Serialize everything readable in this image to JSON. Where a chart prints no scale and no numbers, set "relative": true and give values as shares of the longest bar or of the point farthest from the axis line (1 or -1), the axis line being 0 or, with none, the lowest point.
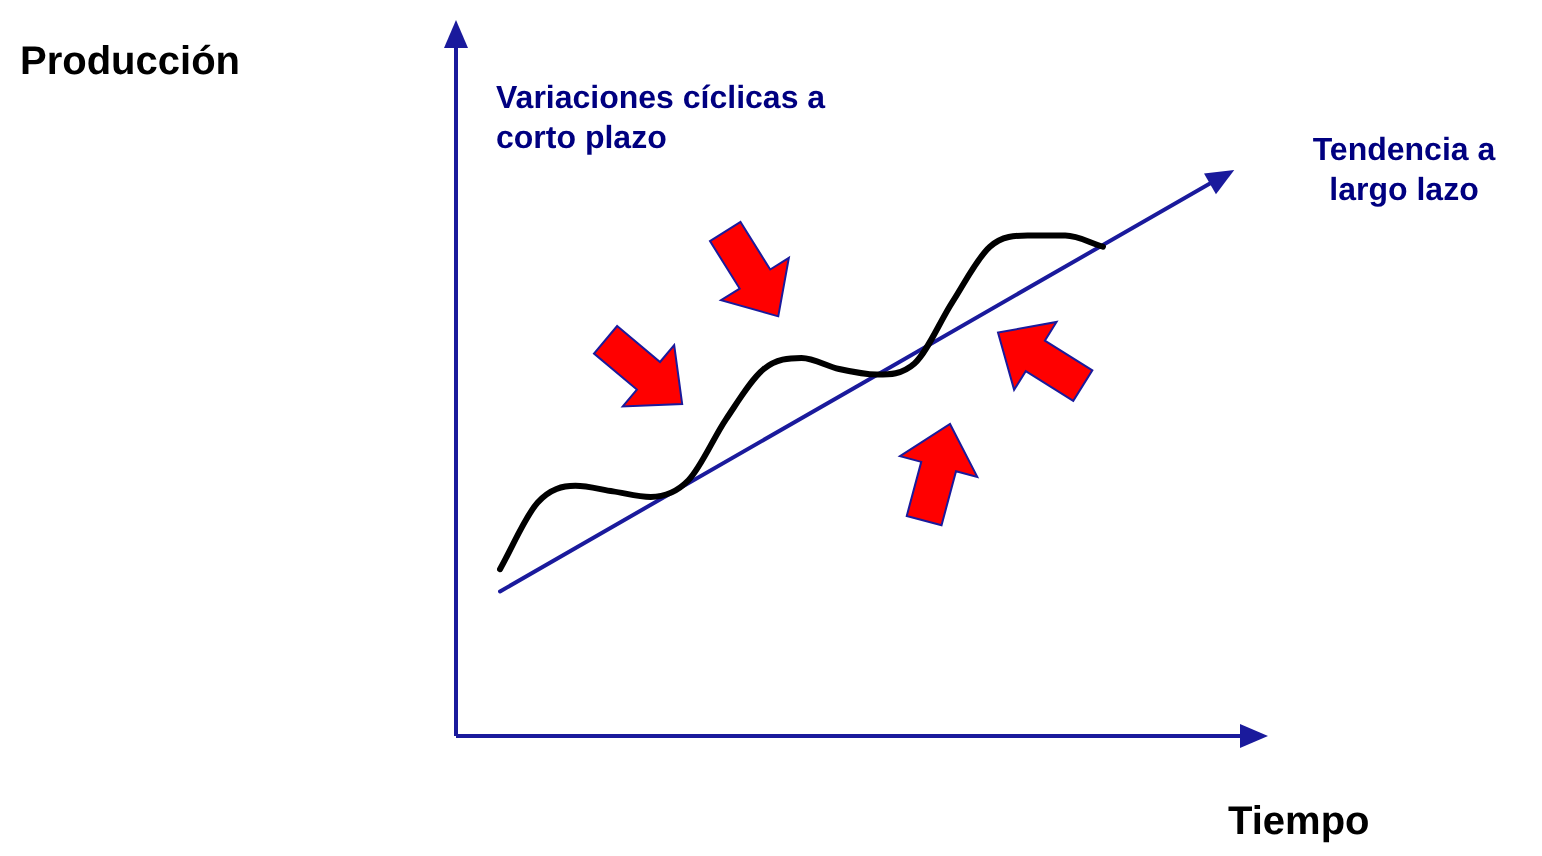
{
  "chart_data": {
    "type": "line",
    "relative": true,
    "line_style": "solid",
    "legend": false,
    "xlabel": "Tiempo",
    "annotations": [
      "Producción",
      "Variaciones cíclicas a corto plazo",
      "Tendencia a largo lazo"
    ],
    "categories": [
      null,
      null,
      null,
      null,
      null,
      null,
      null,
      null,
      null,
      null,
      null,
      null,
      null,
      null,
      null,
      null,
      null,
      null,
      null,
      null
    ],
    "series": [
      {
        "color": "#000000",
        "values": [
          0.3,
          0.42,
          0.45,
          0.44,
          0.43,
          0.46,
          0.57,
          0.66,
          0.68,
          0.66,
          0.65,
          0.67,
          0.78,
          0.88,
          0.9,
          0.9,
          0.88,
          null,
          null,
          null
        ]
      },
      {
        "color": "#1a1a9c",
        "values": [
          0.26,
          null,
          null,
          null,
          null,
          null,
          null,
          null,
          null,
          null,
          null,
          null,
          null,
          null,
          null,
          null,
          null,
          null,
          null,
          1
        ]
      }
    ]
  }
}
